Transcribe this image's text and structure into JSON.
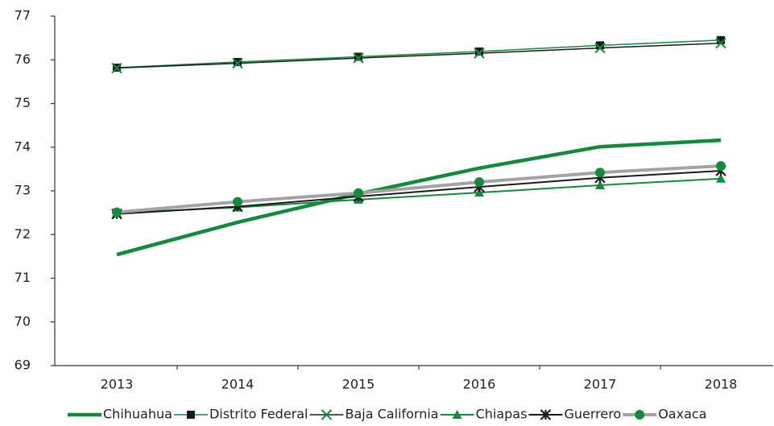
{
  "chart_data": {
    "type": "line",
    "categories": [
      "2013",
      "2014",
      "2015",
      "2016",
      "2017",
      "2018"
    ],
    "ylim": [
      69,
      77
    ],
    "yticks": [
      69,
      70,
      71,
      72,
      73,
      74,
      75,
      76,
      77
    ],
    "grid": false,
    "legend": "bottom",
    "series": [
      {
        "name": "Chihuahua",
        "color": "#138a3d",
        "marker_color": "#138a3d",
        "marker": "none",
        "line_width": 4.5,
        "values": [
          71.54,
          72.28,
          72.93,
          73.52,
          74.01,
          74.16
        ]
      },
      {
        "name": "Distrito Federal",
        "color": "#138a3d",
        "marker_color": "#1a1a1a",
        "marker": "square",
        "line_width": 1.5,
        "values": [
          75.82,
          75.95,
          76.07,
          76.19,
          76.33,
          76.45
        ]
      },
      {
        "name": "Baja California",
        "color": "#1a1a1a",
        "marker_color": "#138a3d",
        "marker": "x",
        "line_width": 1.5,
        "values": [
          75.81,
          75.92,
          76.04,
          76.15,
          76.27,
          76.38
        ]
      },
      {
        "name": "Chiapas",
        "color": "#138a3d",
        "marker_color": "#138a3d",
        "marker": "triangle",
        "line_width": 2,
        "values": [
          72.5,
          72.62,
          72.8,
          72.96,
          73.13,
          73.28
        ]
      },
      {
        "name": "Guerrero",
        "color": "#1a1a1a",
        "marker_color": "#1a1a1a",
        "marker": "asterisk",
        "line_width": 2,
        "values": [
          72.47,
          72.64,
          72.87,
          73.09,
          73.3,
          73.46
        ]
      },
      {
        "name": "Oaxaca",
        "color": "#a3a3a3",
        "marker_color": "#138a3d",
        "marker": "circle",
        "line_width": 4,
        "values": [
          72.51,
          72.75,
          72.95,
          73.2,
          73.42,
          73.57
        ]
      }
    ]
  }
}
